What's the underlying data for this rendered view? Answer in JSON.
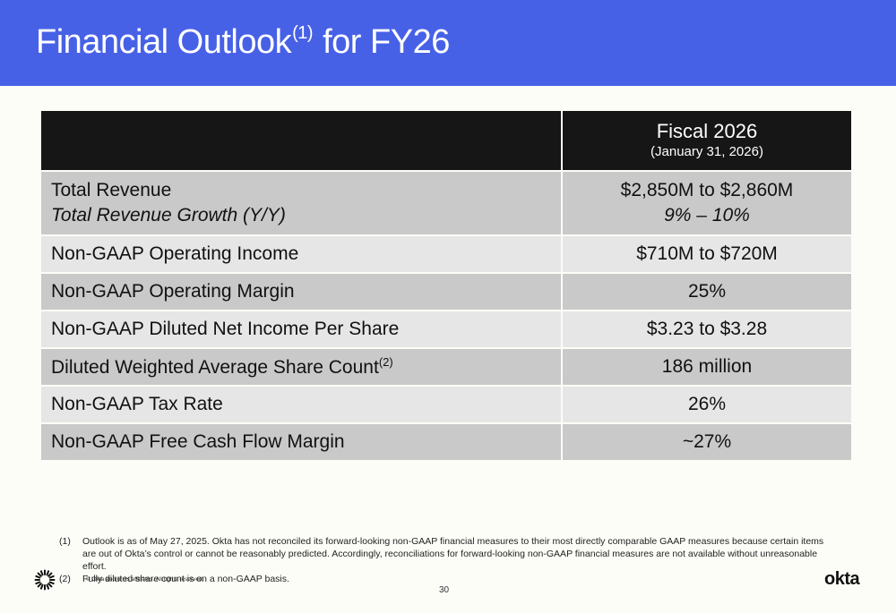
{
  "header": {
    "title_pre": "Financial Outlook",
    "title_sup": "(1)",
    "title_post": " for FY26",
    "color": "#4761e6"
  },
  "table": {
    "column_title": "Fiscal 2026",
    "column_subtitle": "(January 31, 2026)",
    "rows": [
      {
        "label": "Total Revenue",
        "label_italic": "Total Revenue Growth (Y/Y)",
        "value": "$2,850M to $2,860M",
        "value_italic": "9% – 10%"
      },
      {
        "label": "Non-GAAP Operating Income",
        "value": "$710M to $720M"
      },
      {
        "label": "Non-GAAP Operating Margin",
        "value": "25%"
      },
      {
        "label": "Non-GAAP Diluted Net Income Per Share",
        "value": "$3.23 to $3.28"
      },
      {
        "label": "Diluted Weighted Average Share Count",
        "label_sup": "(2)",
        "value": "186 million"
      },
      {
        "label": "Non-GAAP Tax Rate",
        "value": "26%"
      },
      {
        "label": "Non-GAAP Free Cash Flow Margin",
        "value": "~27%"
      }
    ]
  },
  "footnotes": [
    {
      "num": "(1)",
      "text": "Outlook is as of May 27, 2025. Okta has not reconciled its forward-looking non-GAAP financial measures to their most directly comparable GAAP measures because certain items are out of Okta’s control or cannot be reasonably predicted. Accordingly, reconciliations for forward-looking non-GAAP financial measures are not available without unreasonable effort."
    },
    {
      "num": "(2)",
      "text": "Fully diluted share count is on a non-GAAP basis."
    }
  ],
  "footer": {
    "copyright": "© Okta and/or its affiliates. All rights reserved.",
    "page_number": "30",
    "logo": "okta",
    "sun_icon": "okta-sunburst-icon"
  }
}
